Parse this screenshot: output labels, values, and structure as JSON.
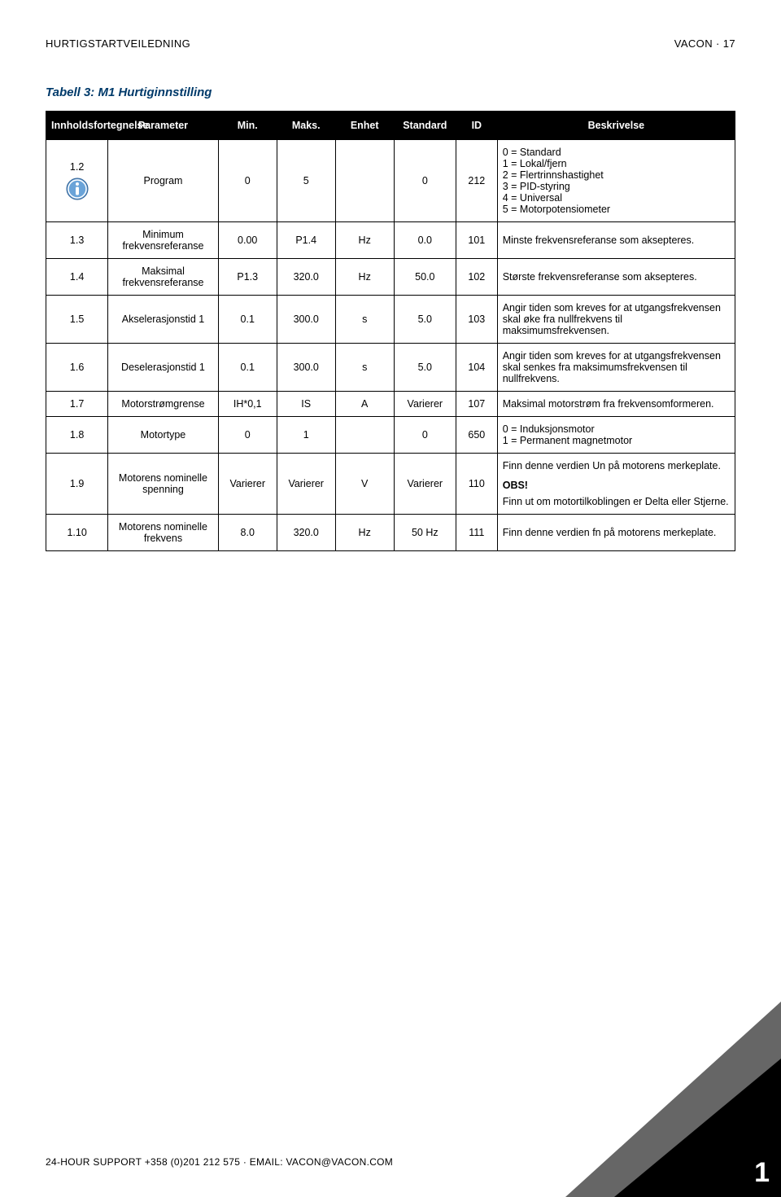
{
  "header": {
    "left": "HURTIGSTARTVEILEDNING",
    "right": "VACON · 17"
  },
  "table_caption": "Tabell 3: M1 Hurtiginnstilling",
  "columns": [
    "Innholdsfortegnelse",
    "Parameter",
    "Min.",
    "Maks.",
    "Enhet",
    "Standard",
    "ID",
    "Beskrivelse"
  ],
  "rows": [
    {
      "idx": "1.2",
      "info": true,
      "param": "Program",
      "min": "0",
      "max": "5",
      "unit": "",
      "std": "0",
      "id": "212",
      "desc": "0 = Standard\n1 = Lokal/fjern\n2 = Flertrinnshastighet\n3 = PID-styring\n4 = Universal\n5 = Motorpotensiometer"
    },
    {
      "idx": "1.3",
      "param": "Minimum frekvensreferanse",
      "min": "0.00",
      "max": "P1.4",
      "unit": "Hz",
      "std": "0.0",
      "id": "101",
      "desc": "Minste frekvensreferanse som aksepteres."
    },
    {
      "idx": "1.4",
      "param": "Maksimal frekvensreferanse",
      "min": "P1.3",
      "max": "320.0",
      "unit": "Hz",
      "std": "50.0",
      "id": "102",
      "desc": "Største frekvensreferanse som aksepteres."
    },
    {
      "idx": "1.5",
      "param": "Akselerasjonstid 1",
      "min": "0.1",
      "max": "300.0",
      "unit": "s",
      "std": "5.0",
      "id": "103",
      "desc": "Angir tiden som kreves for at utgangsfrekvensen skal øke fra nullfrekvens til maksimumsfrekvensen."
    },
    {
      "idx": "1.6",
      "param": "Deselerasjonstid 1",
      "min": "0.1",
      "max": "300.0",
      "unit": "s",
      "std": "5.0",
      "id": "104",
      "desc": "Angir tiden som kreves for at utgangsfrekvensen skal senkes fra maksimumsfrekvensen til nullfrekvens."
    },
    {
      "idx": "1.7",
      "param": "Motorstrømgrense",
      "min": "IH*0,1",
      "max": "IS",
      "unit": "A",
      "std": "Varierer",
      "id": "107",
      "desc": "Maksimal motorstrøm fra frekvensomformeren."
    },
    {
      "idx": "1.8",
      "param": "Motortype",
      "min": "0",
      "max": "1",
      "unit": "",
      "std": "0",
      "id": "650",
      "desc": "0 = Induksjonsmotor\n1 = Permanent magnetmotor"
    },
    {
      "idx": "1.9",
      "param": "Motorens nominelle spenning",
      "min": "Varierer",
      "max": "Varierer",
      "unit": "V",
      "std": "Varierer",
      "id": "110",
      "desc": "Finn denne verdien Un på motorens merkeplate.\n\nOBS!\n\nFinn ut om motortilkoblingen er Delta eller Stjerne.",
      "obs": true
    },
    {
      "idx": "1.10",
      "param": "Motorens nominelle frekvens",
      "min": "8.0",
      "max": "320.0",
      "unit": "Hz",
      "std": "50 Hz",
      "id": "111",
      "desc": "Finn denne verdien fn på motorens merkeplate."
    }
  ],
  "footer_text": "24-HOUR SUPPORT +358 (0)201 212 575 · EMAIL: VACON@VACON.COM",
  "page_number": "1",
  "colors": {
    "caption": "#003a6a",
    "black": "#000000",
    "info_outer": "#6aa3d8",
    "info_border": "#2f5e91",
    "corner_dark": "#000000",
    "corner_light": "#666666"
  }
}
